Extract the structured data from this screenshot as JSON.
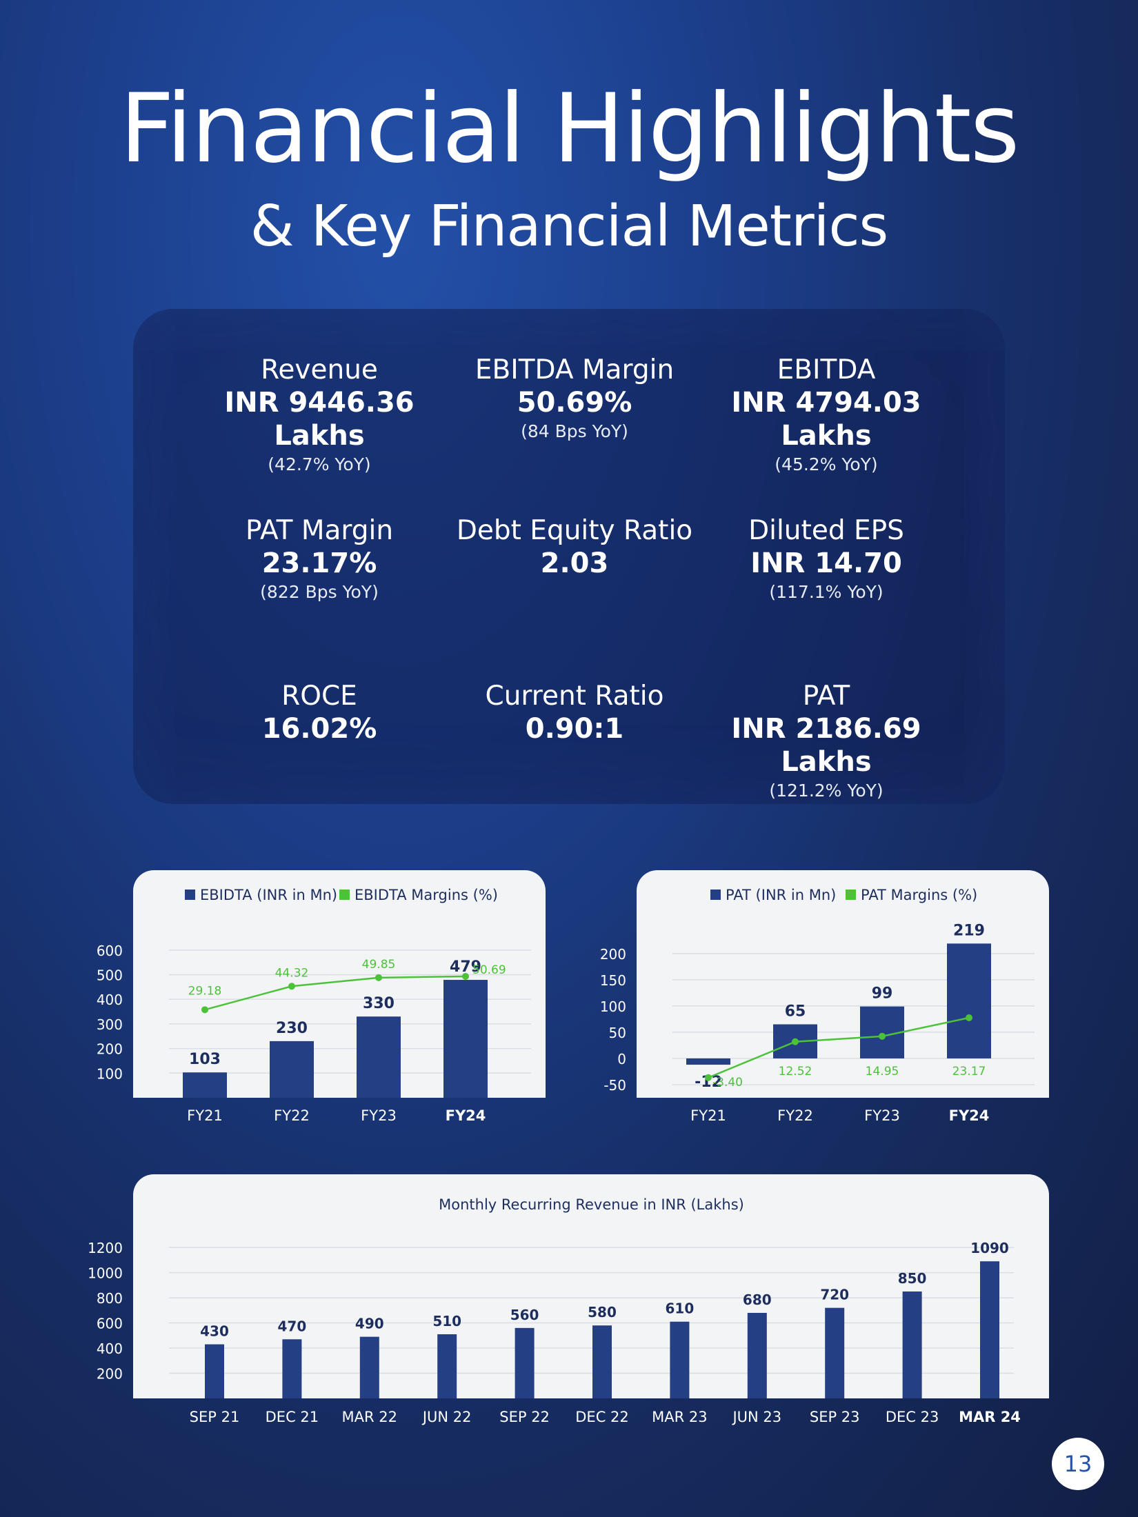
{
  "header": {
    "title": "Financial Highlights",
    "subtitle": "& Key Financial Metrics"
  },
  "metrics": [
    {
      "label": "Revenue",
      "value": "INR 9446.36 Lakhs",
      "yoy": "(42.7% YoY)"
    },
    {
      "label": "EBITDA Margin",
      "value": "50.69%",
      "yoy": "(84 Bps YoY)"
    },
    {
      "label": "EBITDA",
      "value": "INR 4794.03 Lakhs",
      "yoy": "(45.2% YoY)"
    },
    {
      "label": "PAT Margin",
      "value": "23.17%",
      "yoy": "(822 Bps YoY)"
    },
    {
      "label": "Debt Equity Ratio",
      "value": "2.03",
      "yoy": ""
    },
    {
      "label": "Diluted EPS",
      "value": "INR 14.70",
      "yoy": "(117.1%  YoY)"
    },
    {
      "label": "ROCE",
      "value": "16.02%",
      "yoy": ""
    },
    {
      "label": "Current Ratio",
      "value": "0.90:1",
      "yoy": ""
    },
    {
      "label": "PAT",
      "value": "INR 2186.69 Lakhs",
      "yoy": "(121.2% YoY)"
    }
  ],
  "colors": {
    "bar": "#253f85",
    "line": "#4cc23a",
    "label_green": "#4cc23a",
    "label_dark": "#1d2e5e"
  },
  "chart_data": [
    {
      "type": "bar",
      "categories": [
        "FY21",
        "FY22",
        "FY23",
        "FY24"
      ],
      "highlight_category": "FY24",
      "yticks": [
        100,
        200,
        300,
        400,
        500,
        600
      ],
      "ylim": [
        0,
        650
      ],
      "series": [
        {
          "name": "EBIDTA (INR in Mn)",
          "type": "bar",
          "values": [
            103,
            230,
            330,
            479
          ]
        },
        {
          "name": "EBIDTA Margins (%)",
          "type": "line",
          "values": [
            29.18,
            44.32,
            49.85,
            50.69
          ]
        }
      ],
      "legend": "top-center"
    },
    {
      "type": "bar",
      "categories": [
        "FY21",
        "FY22",
        "FY23",
        "FY24"
      ],
      "highlight_category": "FY24",
      "yticks": [
        -50,
        0,
        50,
        100,
        150,
        200
      ],
      "ylim": [
        -75,
        230
      ],
      "series": [
        {
          "name": "PAT (INR in Mn)",
          "type": "bar",
          "values": [
            -12,
            65,
            99,
            219
          ]
        },
        {
          "name": "PAT Margins (%)",
          "type": "line",
          "values": [
            -3.4,
            12.52,
            14.95,
            23.17
          ]
        }
      ],
      "legend": "top-center"
    },
    {
      "type": "bar",
      "title": "Monthly Recurring Revenue in INR (Lakhs)",
      "categories": [
        "SEP 21",
        "DEC 21",
        "MAR 22",
        "JUN 22",
        "SEP 22",
        "DEC 22",
        "MAR 23",
        "JUN 23",
        "SEP 23",
        "DEC 23",
        "MAR 24"
      ],
      "highlight_category": "MAR 24",
      "yticks": [
        200,
        400,
        600,
        800,
        1000,
        1200
      ],
      "ylim": [
        0,
        1250
      ],
      "values": [
        430,
        470,
        490,
        510,
        560,
        580,
        610,
        680,
        720,
        850,
        1090
      ]
    }
  ],
  "footer": {
    "page_number": "13"
  }
}
